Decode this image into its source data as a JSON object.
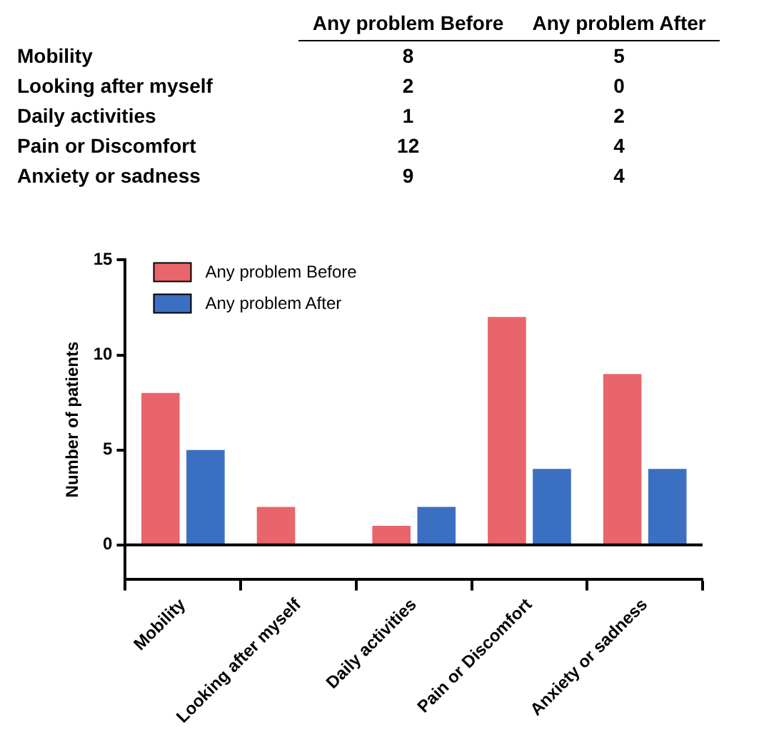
{
  "chart_data": [
    {
      "type": "heatmap",
      "categories": [
        "Any problem Before",
        "Any problem After"
      ],
      "y_categories": [
        "Mobility",
        "Looking after myself",
        "Daily activities",
        "Pain or Discomfort",
        "Anxiety or sadness"
      ],
      "cells": [
        [
          8,
          5
        ],
        [
          2,
          0
        ],
        [
          1,
          2
        ],
        [
          12,
          4
        ],
        [
          9,
          4
        ]
      ],
      "cell_labels": [
        [
          "8",
          "5"
        ],
        [
          "2",
          "0"
        ],
        [
          "1",
          "2"
        ],
        [
          "12",
          "4"
        ],
        [
          "9",
          "4"
        ]
      ]
    },
    {
      "type": "bar",
      "ylabel": "Number of patients",
      "categories": [
        "Mobility",
        "Looking after myself",
        "Daily activities",
        "Pain or Discomfort",
        "Anxiety or sadness"
      ],
      "series": [
        {
          "name": "Any problem Before",
          "color": "#e8666b",
          "values": [
            8,
            2,
            1,
            12,
            9
          ]
        },
        {
          "name": "Any problem After",
          "color": "#3b6fc2",
          "values": [
            5,
            0,
            2,
            4,
            4
          ]
        }
      ],
      "ylim": [
        -1.8,
        15
      ],
      "yticks": [
        0,
        5,
        10,
        15
      ],
      "ref_lines": [
        {
          "axis": "y",
          "value": 0,
          "color": "#000000"
        }
      ],
      "grid": false,
      "legend": "top left"
    }
  ]
}
